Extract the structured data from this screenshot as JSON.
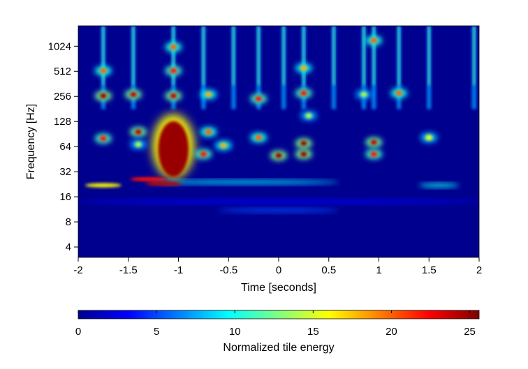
{
  "chart_data": {
    "type": "heatmap",
    "xlabel": "Time [seconds]",
    "ylabel": "Frequency [Hz]",
    "xlim": [
      -2,
      2
    ],
    "ylim": [
      3,
      1800
    ],
    "y_scale": "log2",
    "x_ticks": [
      -2,
      -1.5,
      -1,
      -0.5,
      0,
      0.5,
      1,
      1.5,
      2
    ],
    "x_tick_labels": [
      "-2",
      "-1.5",
      "-1",
      "-0.5",
      "0",
      "0.5",
      "1",
      "1.5",
      "2"
    ],
    "y_ticks": [
      4,
      8,
      16,
      32,
      64,
      128,
      256,
      512,
      1024
    ],
    "y_tick_labels": [
      "4",
      "8",
      "16",
      "32",
      "64",
      "128",
      "256",
      "512",
      "1024"
    ],
    "colorbar": {
      "label": "Normalized tile energy",
      "range": [
        0,
        25.6
      ],
      "ticks": [
        0,
        5,
        10,
        15,
        20,
        25
      ],
      "tick_labels": [
        "0",
        "5",
        "10",
        "15",
        "20",
        "25"
      ],
      "colormap": "jet"
    },
    "features": {
      "strong_blob": {
        "time": -1.05,
        "f_low": 30,
        "f_high": 140,
        "energy": 25
      },
      "harmonic_lines": [
        {
          "time": -1.75,
          "freq": 22,
          "energy": 16
        },
        {
          "time": -1.15,
          "freq": 23,
          "energy": 24
        },
        {
          "time": -1.3,
          "freq": 26,
          "energy": 22
        }
      ],
      "hot_spots": [
        {
          "time": -1.75,
          "freq": 80,
          "energy": 22
        },
        {
          "time": -1.4,
          "freq": 96,
          "energy": 24
        },
        {
          "time": -1.4,
          "freq": 68,
          "energy": 14
        },
        {
          "time": -0.75,
          "freq": 52,
          "energy": 22
        },
        {
          "time": -0.7,
          "freq": 96,
          "energy": 20
        },
        {
          "time": -0.55,
          "freq": 66,
          "energy": 18
        },
        {
          "time": -0.2,
          "freq": 82,
          "energy": 20
        },
        {
          "time": 0.0,
          "freq": 50,
          "energy": 25
        },
        {
          "time": 0.25,
          "freq": 70,
          "energy": 25
        },
        {
          "time": 0.25,
          "freq": 52,
          "energy": 25
        },
        {
          "time": 0.3,
          "freq": 150,
          "energy": 14
        },
        {
          "time": 0.95,
          "freq": 72,
          "energy": 24
        },
        {
          "time": 0.95,
          "freq": 52,
          "energy": 22
        },
        {
          "time": 1.5,
          "freq": 82,
          "energy": 16
        },
        {
          "time": -1.45,
          "freq": 270,
          "energy": 24
        },
        {
          "time": -1.05,
          "freq": 260,
          "energy": 24
        },
        {
          "time": -1.75,
          "freq": 260,
          "energy": 25
        },
        {
          "time": -0.7,
          "freq": 270,
          "energy": 18
        },
        {
          "time": -0.2,
          "freq": 240,
          "energy": 22
        },
        {
          "time": 0.25,
          "freq": 280,
          "energy": 22
        },
        {
          "time": 1.2,
          "freq": 280,
          "energy": 20
        },
        {
          "time": 0.85,
          "freq": 270,
          "energy": 14
        },
        {
          "time": -1.05,
          "freq": 520,
          "energy": 22
        },
        {
          "time": -1.75,
          "freq": 520,
          "energy": 20
        },
        {
          "time": 0.25,
          "freq": 560,
          "energy": 18
        },
        {
          "time": -1.05,
          "freq": 1000,
          "energy": 20
        },
        {
          "time": 0.95,
          "freq": 1200,
          "energy": 20
        }
      ],
      "vertical_streaks": [
        -1.75,
        -1.45,
        -1.05,
        -0.75,
        -0.45,
        -0.2,
        0.05,
        0.25,
        0.55,
        0.85,
        0.95,
        1.2,
        1.5,
        1.95
      ],
      "low_bands": [
        {
          "freq": 24,
          "time_from": -1.3,
          "time_to": 0.6,
          "energy": 9
        },
        {
          "freq": 22,
          "time_from": 1.4,
          "time_to": 1.8,
          "energy": 10
        },
        {
          "freq": 11,
          "time_from": -0.6,
          "time_to": 0.6,
          "energy": 5
        },
        {
          "freq": 14,
          "time_from": -2,
          "time_to": 2,
          "energy": 3
        }
      ]
    }
  }
}
